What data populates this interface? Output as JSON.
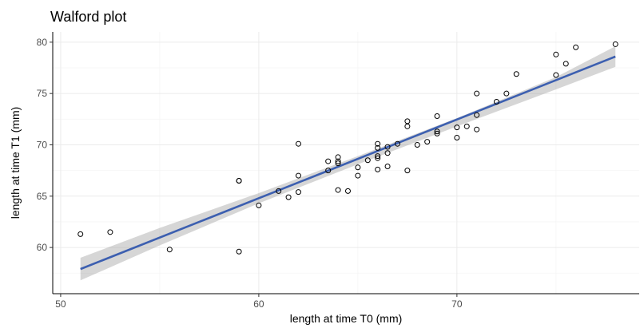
{
  "chart_data": {
    "type": "scatter",
    "title": "Walford plot",
    "xlabel": "length at time T0 (mm)",
    "ylabel": "length at time T1 (mm)",
    "xlim": [
      49.6,
      79.2
    ],
    "ylim": [
      55.5,
      81.0
    ],
    "x_ticks": [
      50,
      60,
      70
    ],
    "y_ticks": [
      60,
      65,
      70,
      75,
      80
    ],
    "x_tick_labels": [
      "50",
      "60",
      "70"
    ],
    "y_tick_labels": [
      "60",
      "65",
      "70",
      "75",
      "80"
    ],
    "grid": true,
    "series": [
      {
        "marker": "open-circle",
        "color": "#000000",
        "points": [
          [
            51.0,
            61.3
          ],
          [
            52.5,
            61.5
          ],
          [
            55.5,
            59.8
          ],
          [
            59.0,
            59.6
          ],
          [
            59.0,
            66.5
          ],
          [
            59.0,
            66.5
          ],
          [
            60.0,
            64.1
          ],
          [
            61.0,
            65.5
          ],
          [
            61.5,
            64.9
          ],
          [
            62.0,
            65.4
          ],
          [
            62.0,
            67.0
          ],
          [
            62.0,
            70.1
          ],
          [
            63.5,
            67.5
          ],
          [
            63.5,
            68.4
          ],
          [
            64.0,
            68.2
          ],
          [
            64.0,
            68.4
          ],
          [
            64.0,
            68.8
          ],
          [
            64.0,
            65.6
          ],
          [
            64.5,
            65.5
          ],
          [
            65.0,
            67.0
          ],
          [
            65.0,
            67.8
          ],
          [
            65.5,
            68.5
          ],
          [
            66.0,
            68.7
          ],
          [
            66.0,
            68.9
          ],
          [
            66.0,
            69.7
          ],
          [
            66.0,
            70.1
          ],
          [
            66.0,
            67.6
          ],
          [
            66.5,
            69.2
          ],
          [
            66.5,
            69.8
          ],
          [
            66.5,
            67.9
          ],
          [
            67.0,
            70.1
          ],
          [
            67.5,
            71.8
          ],
          [
            67.5,
            72.3
          ],
          [
            67.5,
            67.5
          ],
          [
            68.0,
            70.0
          ],
          [
            68.5,
            70.3
          ],
          [
            69.0,
            71.1
          ],
          [
            69.0,
            71.3
          ],
          [
            69.0,
            72.8
          ],
          [
            70.0,
            70.7
          ],
          [
            70.0,
            71.7
          ],
          [
            70.5,
            71.8
          ],
          [
            71.0,
            71.5
          ],
          [
            71.0,
            72.9
          ],
          [
            71.0,
            75.0
          ],
          [
            72.0,
            74.2
          ],
          [
            72.5,
            75.0
          ],
          [
            73.0,
            76.9
          ],
          [
            75.0,
            76.8
          ],
          [
            75.0,
            78.8
          ],
          [
            75.5,
            77.9
          ],
          [
            76.0,
            79.5
          ],
          [
            78.0,
            79.8
          ]
        ]
      }
    ],
    "fit_line": {
      "color": "#3c5fb0",
      "x": [
        51.0,
        78.0
      ],
      "y": [
        57.9,
        78.6
      ]
    },
    "confidence_band": {
      "x": [
        51.0,
        55.0,
        60.0,
        65.0,
        70.0,
        75.0,
        78.0
      ],
      "lower": [
        56.8,
        60.2,
        64.3,
        68.1,
        71.8,
        75.4,
        77.6
      ],
      "upper": [
        59.0,
        61.9,
        65.3,
        68.9,
        72.6,
        76.6,
        79.6
      ]
    }
  }
}
